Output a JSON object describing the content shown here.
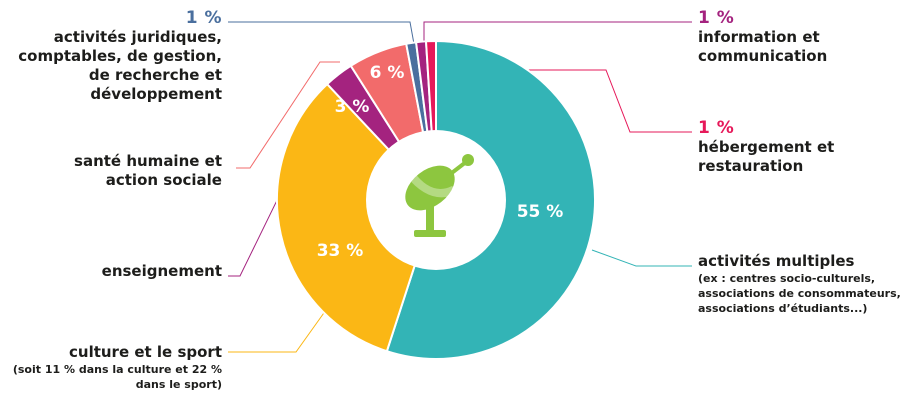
{
  "chart_data": {
    "type": "pie",
    "title": "",
    "slices": [
      {
        "label": "activités multiples",
        "pct_text": "55 %",
        "value": 55,
        "color": "#33b4b6"
      },
      {
        "label": "culture et le sport",
        "pct_text": "33 %",
        "value": 33,
        "color": "#fbb715"
      },
      {
        "label": "enseignement",
        "pct_text": "3 %",
        "value": 3,
        "color": "#a4237f"
      },
      {
        "label": "santé humaine et action sociale",
        "pct_text": "6 %",
        "value": 6,
        "color": "#f26b6b"
      },
      {
        "label": "activités juridiques, comptables, de gestion, de recherche et développement",
        "pct_text": "1 %",
        "value": 1,
        "color": "#4a6f9e"
      },
      {
        "label": "information et communication",
        "pct_text": "1 %",
        "value": 1,
        "color": "#a4237f"
      },
      {
        "label": "hébergement et restauration",
        "pct_text": "1 %",
        "value": 1,
        "color": "#e6195a"
      }
    ]
  },
  "labels": {
    "juridique": {
      "pct": "1 %",
      "lines": [
        "activités juridiques,",
        "comptables, de gestion,",
        "de recherche et",
        "développement"
      ]
    },
    "sante": {
      "lines": [
        "santé humaine et",
        "action sociale"
      ]
    },
    "enseignement": {
      "lines": [
        "enseignement"
      ]
    },
    "culture": {
      "lines": [
        "culture et le sport"
      ],
      "sub": [
        "(soit 11 % dans la culture et 22 %",
        "dans le sport)"
      ]
    },
    "information": {
      "pct": "1 %",
      "lines": [
        "information et",
        "communication"
      ]
    },
    "hebergement": {
      "pct": "1 %",
      "lines": [
        "hébergement et",
        "restauration"
      ]
    },
    "multiples": {
      "lines": [
        "activités multiples"
      ],
      "sub": [
        "(ex : centres socio-culturels,",
        "associations de consommateurs,",
        "associations d’étudiants...)"
      ]
    }
  },
  "colors": {
    "teal": "#33b4b6",
    "yellow": "#fbb715",
    "purple": "#a4237f",
    "salmon": "#f26b6b",
    "steel": "#4a6f9e",
    "magenta": "#e6195a",
    "green_icon": "#8dc63f",
    "text": "#1d1d1b"
  },
  "center_icon": "satellite-dish-icon"
}
